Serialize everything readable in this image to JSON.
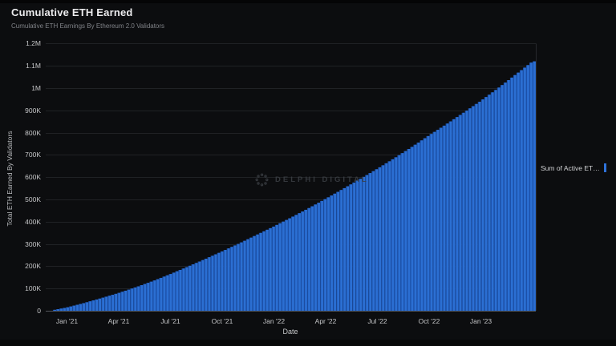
{
  "header": {
    "title": "Cumulative ETH Earned",
    "subtitle": "Cumulative ETH Earnings By Ethereum 2.0 Validators"
  },
  "legend": {
    "label": "Sum of Active ET…",
    "marker_color": "#2e72d9"
  },
  "watermark": {
    "text": "DELPHI DIGITAL"
  },
  "chart_data": {
    "type": "bar",
    "title": "Cumulative ETH Earned",
    "subtitle": "Cumulative ETH Earnings By Ethereum 2.0 Validators",
    "xlabel": "Date",
    "ylabel": "Total ETH Earned By Validators",
    "series_name": "Sum of Active ET…",
    "legend_position": "right",
    "grid": true,
    "ylim": [
      0,
      1200000
    ],
    "y_ticks": [
      {
        "label": "0",
        "value": 0
      },
      {
        "label": "100K",
        "value": 100000
      },
      {
        "label": "200K",
        "value": 200000
      },
      {
        "label": "300K",
        "value": 300000
      },
      {
        "label": "400K",
        "value": 400000
      },
      {
        "label": "500K",
        "value": 500000
      },
      {
        "label": "600K",
        "value": 600000
      },
      {
        "label": "700K",
        "value": 700000
      },
      {
        "label": "800K",
        "value": 800000
      },
      {
        "label": "900K",
        "value": 900000
      },
      {
        "label": "1M",
        "value": 1000000
      },
      {
        "label": "1.1M",
        "value": 1100000
      },
      {
        "label": "1.2M",
        "value": 1200000
      }
    ],
    "x_ticks": [
      {
        "label": "Jan '21",
        "month_index": 1
      },
      {
        "label": "Apr '21",
        "month_index": 4
      },
      {
        "label": "Jul '21",
        "month_index": 7
      },
      {
        "label": "Oct '21",
        "month_index": 10
      },
      {
        "label": "Jan '22",
        "month_index": 13
      },
      {
        "label": "Apr '22",
        "month_index": 16
      },
      {
        "label": "Jul '22",
        "month_index": 19
      },
      {
        "label": "Oct '22",
        "month_index": 22
      },
      {
        "label": "Jan '23",
        "month_index": 25
      }
    ],
    "categories": [
      "Dec '20",
      "Jan '21",
      "Feb '21",
      "Mar '21",
      "Apr '21",
      "May '21",
      "Jun '21",
      "Jul '21",
      "Aug '21",
      "Sep '21",
      "Oct '21",
      "Nov '21",
      "Dec '21",
      "Jan '22",
      "Feb '22",
      "Mar '22",
      "Apr '22",
      "May '22",
      "Jun '22",
      "Jul '22",
      "Aug '22",
      "Sep '22",
      "Oct '22",
      "Nov '22",
      "Dec '22",
      "Jan '23",
      "Feb '23",
      "Mar '23",
      "Apr '23"
    ],
    "values": [
      0,
      15000,
      35000,
      57000,
      80000,
      106000,
      134000,
      165000,
      198000,
      232000,
      267000,
      303000,
      341000,
      379000,
      419000,
      460000,
      503000,
      547000,
      592000,
      638000,
      686000,
      736000,
      788000,
      838000,
      890000,
      943000,
      1000000,
      1060000,
      1120000
    ],
    "colors": {
      "bar_bright": "#2b6fd3",
      "bar_dark": "#1c50a8",
      "gridline": "#202225",
      "baseline": "#53565b",
      "plot_border": "#26282c",
      "background": "#0c0d0f"
    }
  }
}
